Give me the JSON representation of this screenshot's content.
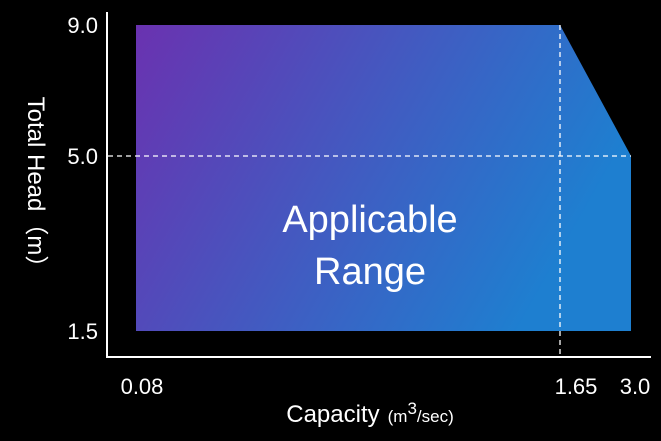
{
  "chart_data": {
    "type": "area",
    "title": "",
    "xlabel": "Capacity",
    "xlabel_unit_prefix": "(m",
    "xlabel_unit_sup": "3",
    "xlabel_unit_suffix": "/sec)",
    "ylabel": "Total Head（m）",
    "x_ticks": [
      "0.08",
      "1.65",
      "3.0"
    ],
    "y_ticks": [
      "9.0",
      "5.0",
      "1.5"
    ],
    "x_tick_values": [
      0.08,
      1.65,
      3.0
    ],
    "y_tick_values": [
      9.0,
      5.0,
      1.5
    ],
    "region": {
      "label_lines": [
        "Applicable",
        "Range"
      ],
      "polygon": [
        {
          "x": 0.08,
          "y": 1.5
        },
        {
          "x": 0.08,
          "y": 9.0
        },
        {
          "x": 1.65,
          "y": 9.0
        },
        {
          "x": 3.0,
          "y": 5.0
        },
        {
          "x": 3.0,
          "y": 1.5
        }
      ],
      "gradient_colors": [
        "#6a32b0",
        "#1e7fd0"
      ]
    },
    "reference_lines": [
      {
        "axis": "y",
        "value": 5.0,
        "style": "dashed"
      },
      {
        "axis": "x",
        "value": 1.65,
        "style": "dashed"
      }
    ],
    "grid": false,
    "colors": {
      "background": "#000000",
      "axis": "#ffffff",
      "text": "#ffffff"
    }
  }
}
